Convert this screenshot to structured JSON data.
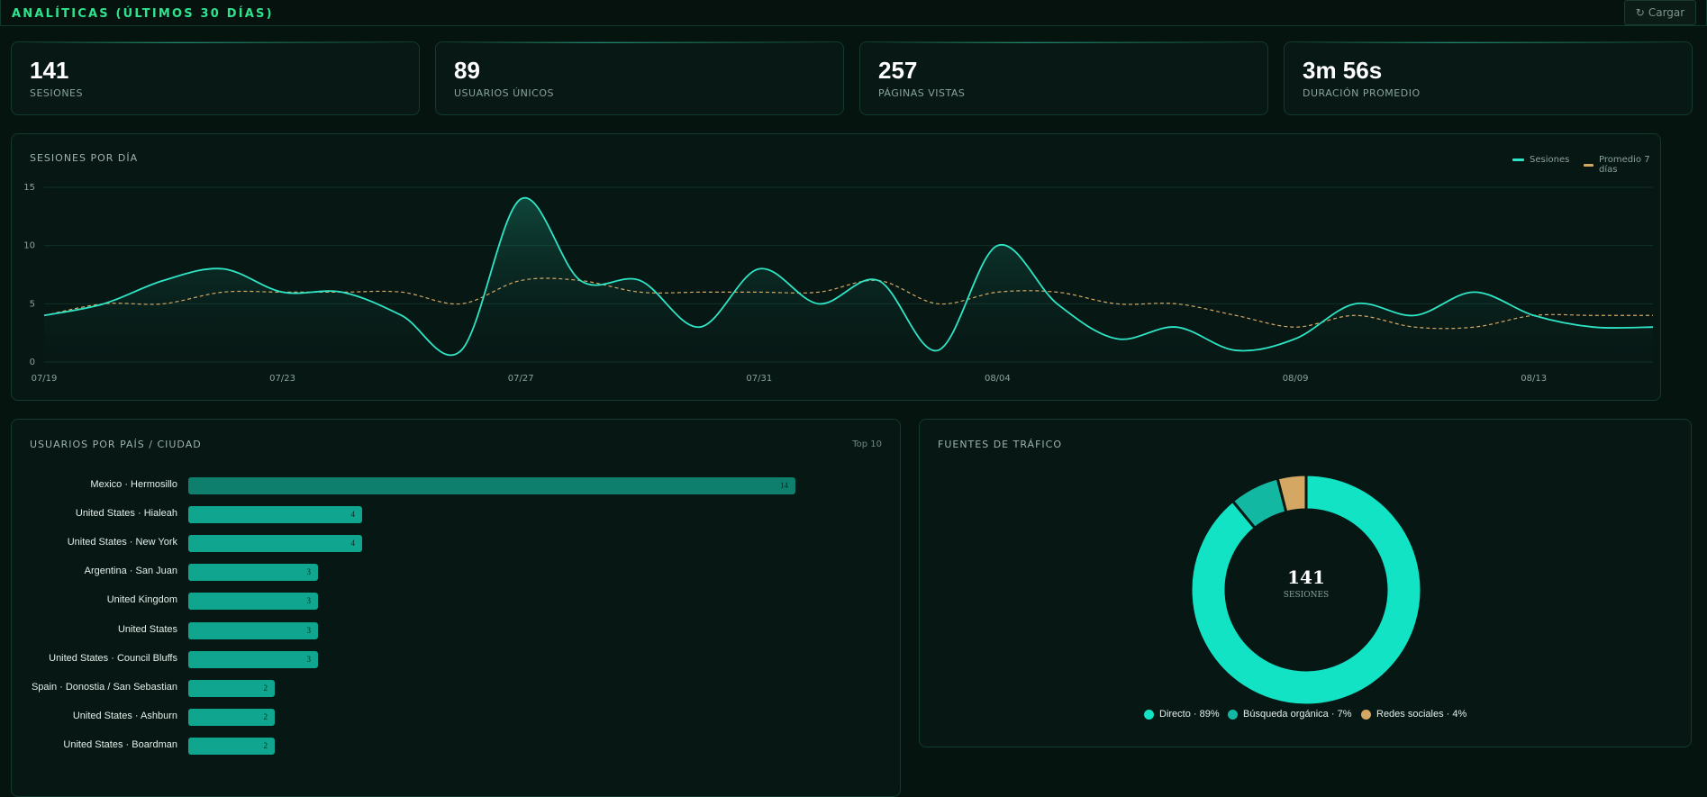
{
  "header": {
    "title": "ANALÍTICAS (ÚLTIMOS 30 DÍAS)",
    "refresh_icon": "refresh-icon",
    "refresh_glyph": "↻",
    "refresh_label": "Cargar"
  },
  "stats": [
    {
      "value": "141",
      "label": "SESIONES"
    },
    {
      "value": "89",
      "label": "USUARIOS ÚNICOS"
    },
    {
      "value": "257",
      "label": "PÁGINAS VISTAS"
    },
    {
      "value": "3m 56s",
      "label": "DURACIÓN PROMEDIO"
    }
  ],
  "sessions_chart": {
    "title": "SESIONES POR DÍA",
    "legend": [
      "Sesiones",
      "Promedio 7 días"
    ]
  },
  "countries": {
    "title": "USUARIOS POR PAÍS / CIUDAD",
    "badge": "Top 10",
    "rows": [
      {
        "label": "Mexico · Hermosillo",
        "value": 14
      },
      {
        "label": "United States · Hialeah",
        "value": 4
      },
      {
        "label": "United States · New York",
        "value": 4
      },
      {
        "label": "Argentina · San Juan",
        "value": 3
      },
      {
        "label": "United Kingdom",
        "value": 3
      },
      {
        "label": "United States",
        "value": 3
      },
      {
        "label": "United States · Council Bluffs",
        "value": 3
      },
      {
        "label": "Spain · Donostia / San Sebastian",
        "value": 2
      },
      {
        "label": "United States · Ashburn",
        "value": 2
      },
      {
        "label": "United States · Boardman",
        "value": 2
      }
    ]
  },
  "traffic": {
    "title": "FUENTES DE TRÁFICO",
    "center_value": "141",
    "center_label": "SESIONES",
    "legend": [
      {
        "label": "Directo · 89%",
        "color": "#12e3c4"
      },
      {
        "label": "Búsqueda orgánica · 7%",
        "color": "#12b8a2"
      },
      {
        "label": "Redes sociales · 4%",
        "color": "#d4a862"
      }
    ]
  },
  "colors": {
    "accent": "#2fe38e",
    "sessions": "#2ee6c6",
    "average": "#d4a862"
  },
  "chart_data": [
    {
      "type": "line",
      "title": "SESIONES POR DÍA",
      "x": [
        "07/19",
        "07/20",
        "07/21",
        "07/22",
        "07/23",
        "07/24",
        "07/25",
        "07/26",
        "07/27",
        "07/28",
        "07/29",
        "07/30",
        "07/31",
        "08/01",
        "08/02",
        "08/03",
        "08/04",
        "08/05",
        "08/06",
        "08/07",
        "08/08",
        "08/09",
        "08/10",
        "08/11",
        "08/12",
        "08/13",
        "08/14",
        "08/15"
      ],
      "xticks": [
        "07/19",
        "07/23",
        "07/27",
        "07/31",
        "08/04",
        "08/09",
        "08/13"
      ],
      "ylim": [
        0,
        15
      ],
      "yticks": [
        0,
        5,
        10,
        15
      ],
      "grid": true,
      "legend_position": "top-right",
      "series": [
        {
          "name": "Sesiones",
          "values": [
            4,
            5,
            7,
            8,
            6,
            6,
            4,
            1,
            14,
            7,
            7,
            3,
            8,
            5,
            7,
            1,
            10,
            5,
            2,
            3,
            1,
            2,
            5,
            4,
            6,
            4,
            3,
            3
          ]
        },
        {
          "name": "Promedio 7 días",
          "values": [
            4,
            5,
            5,
            6,
            6,
            6,
            6,
            5,
            7,
            7,
            6,
            6,
            6,
            6,
            7,
            5,
            6,
            6,
            5,
            5,
            4,
            3,
            4,
            3,
            3,
            4,
            4,
            4
          ]
        }
      ]
    },
    {
      "type": "bar",
      "title": "USUARIOS POR PAÍS / CIUDAD",
      "orientation": "horizontal",
      "categories": [
        "Mexico · Hermosillo",
        "United States · Hialeah",
        "United States · New York",
        "Argentina · San Juan",
        "United Kingdom",
        "United States",
        "United States · Council Bluffs",
        "Spain · Donostia / San Sebastian",
        "United States · Ashburn",
        "United States · Boardman"
      ],
      "values": [
        14,
        4,
        4,
        3,
        3,
        3,
        3,
        2,
        2,
        2
      ]
    },
    {
      "type": "pie",
      "title": "FUENTES DE TRÁFICO",
      "donut": true,
      "categories": [
        "Directo",
        "Búsqueda orgánica",
        "Redes sociales"
      ],
      "values": [
        89,
        7,
        4
      ]
    }
  ]
}
